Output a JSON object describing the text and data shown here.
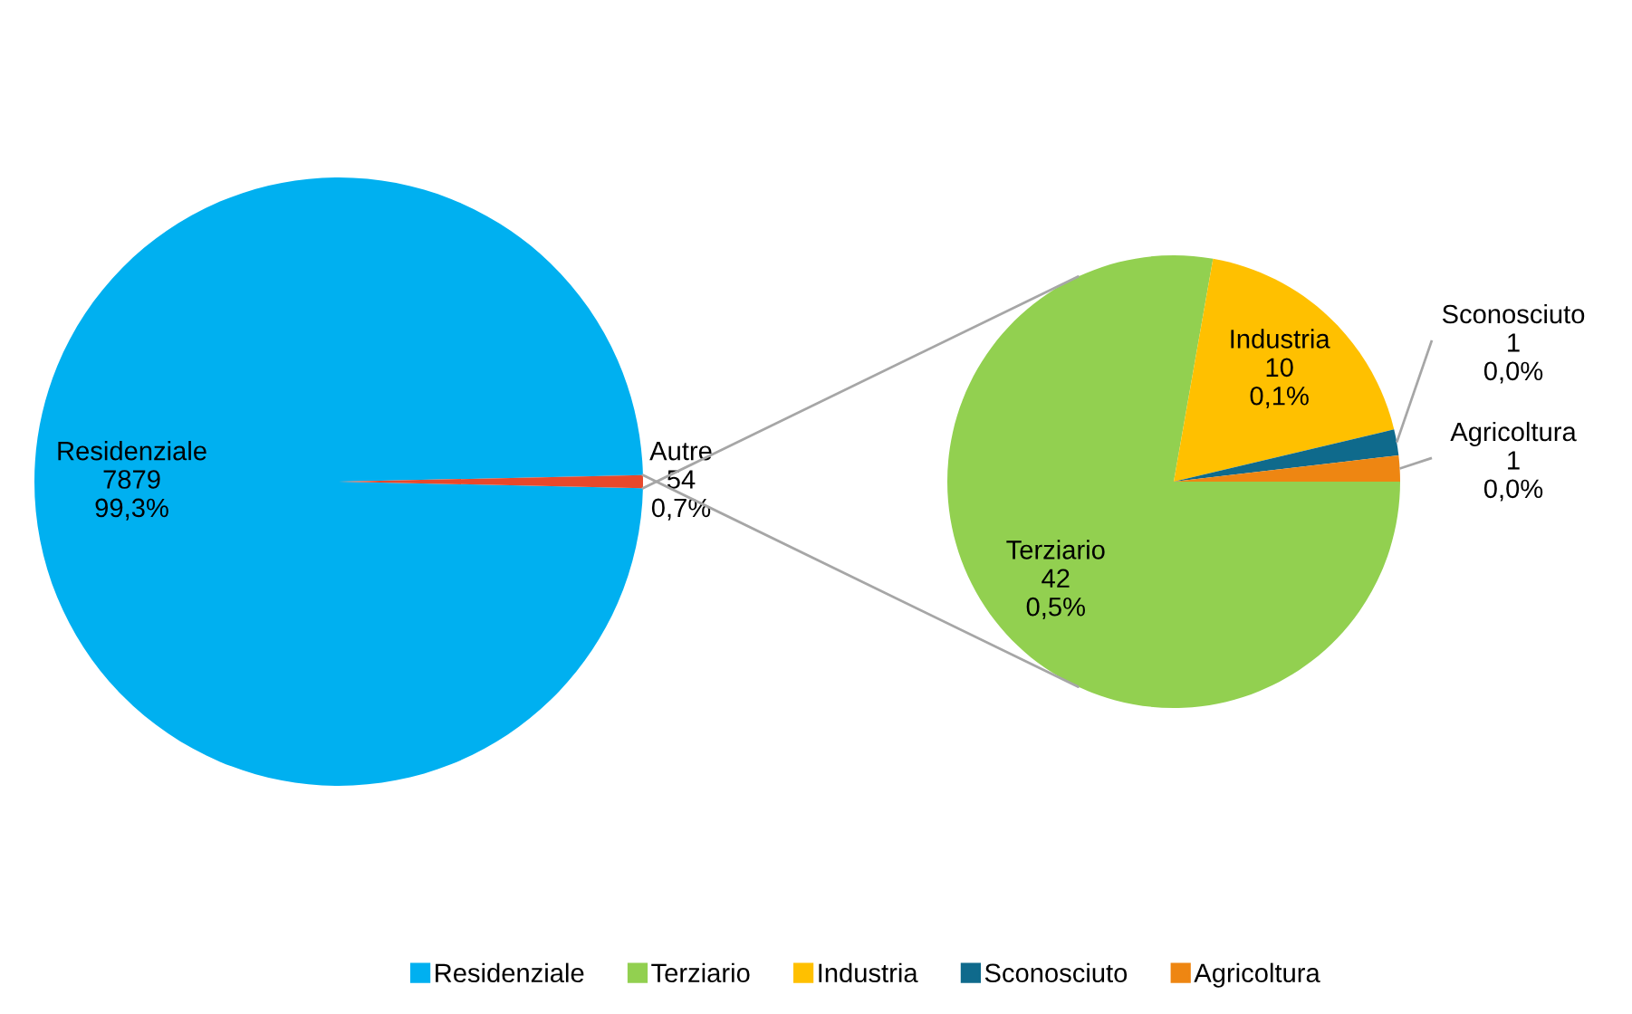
{
  "chart_data": [
    {
      "type": "pie",
      "categories": [
        "Residenziale",
        "Autre"
      ],
      "values": [
        7879,
        54
      ],
      "colors": [
        "#00b0f0",
        "#e8482b"
      ],
      "value_labels": [
        "7879\n99,3%",
        "54\n0,7%"
      ],
      "legend": "bottom"
    },
    {
      "type": "pie",
      "categories": [
        "Terziario",
        "Industria",
        "Sconosciuto",
        "Agricoltura"
      ],
      "values": [
        42,
        10,
        1,
        1
      ],
      "colors": [
        "#92d050",
        "#ffc000",
        "#0f6a8c",
        "#ee8612"
      ],
      "value_labels": [
        "42\n0,5%",
        "10\n0,1%",
        "1\n0,0%",
        "1\n0,0%"
      ],
      "legend": "bottom"
    }
  ]
}
